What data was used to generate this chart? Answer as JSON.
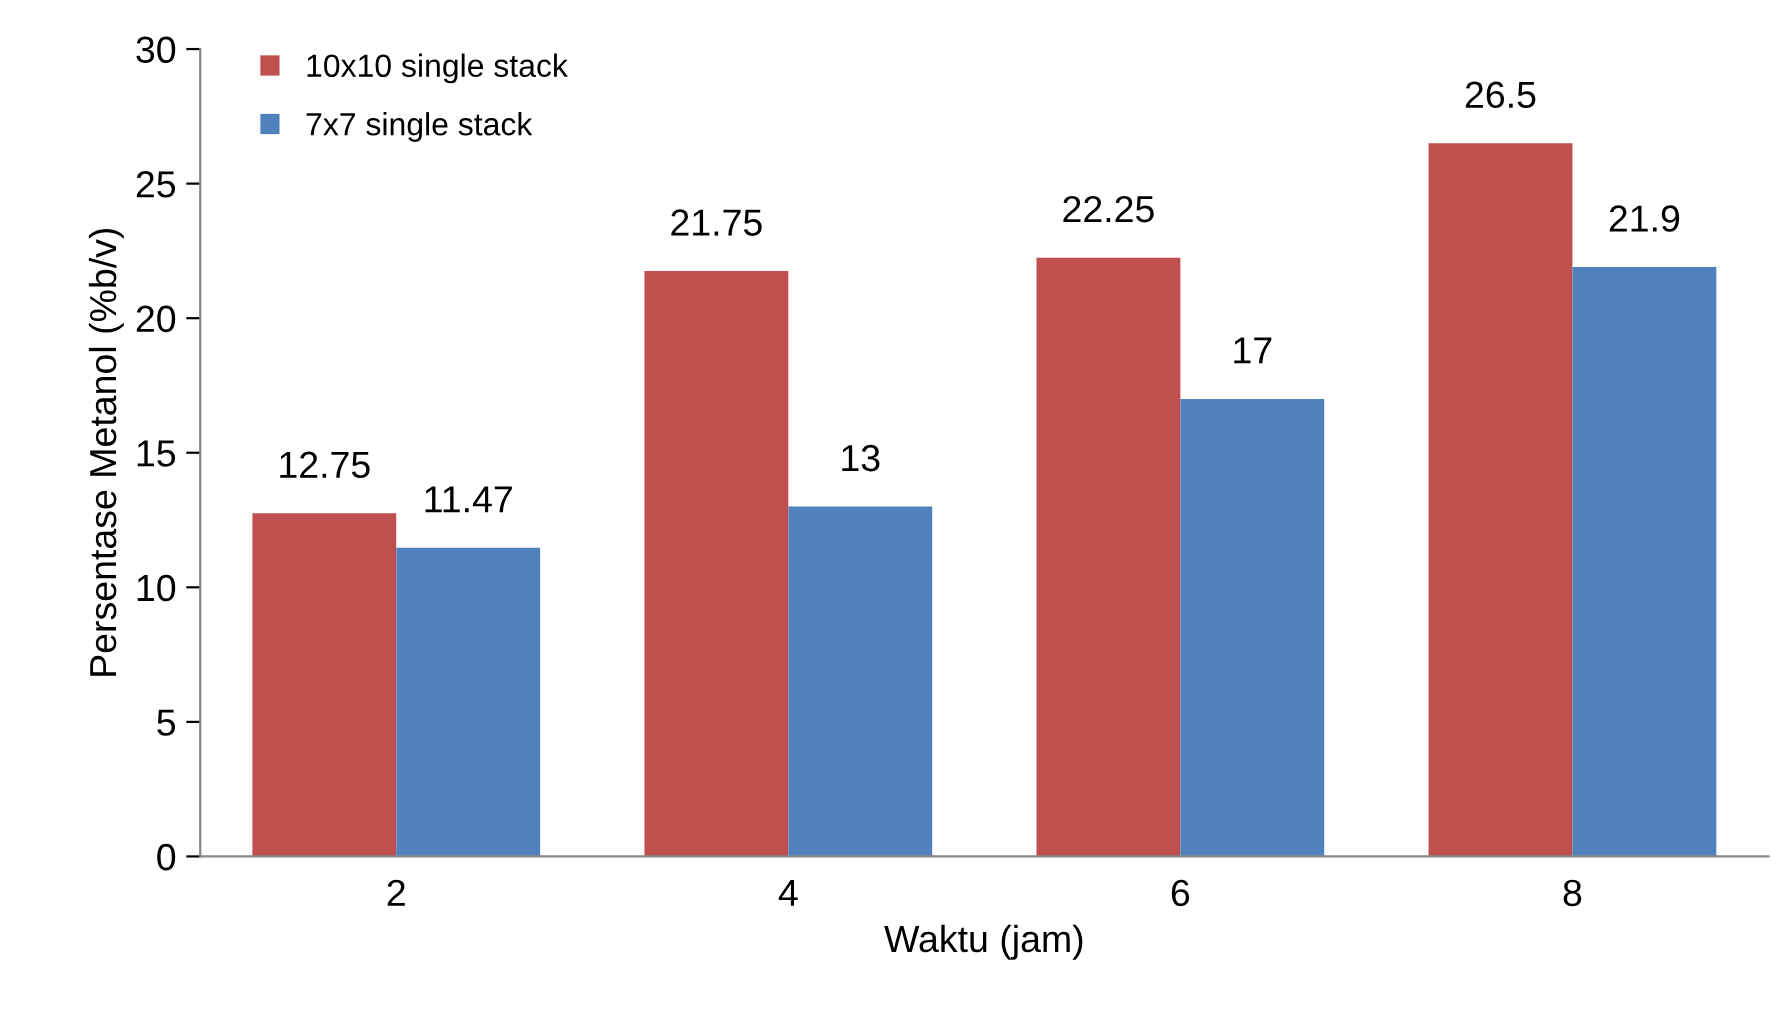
{
  "chart_data": {
    "type": "bar",
    "xlabel": "Waktu (jam)",
    "ylabel": "Persentase Metanol (%b/v)",
    "categories": [
      "2",
      "4",
      "6",
      "8"
    ],
    "series": [
      {
        "name": "10x10 single stack",
        "color": "#c0504d",
        "values": [
          12.75,
          21.75,
          22.25,
          26.5
        ]
      },
      {
        "name": "7x7 single stack",
        "color": "#4f81bd",
        "values": [
          11.47,
          13,
          17,
          21.9
        ]
      }
    ],
    "ylim": [
      0,
      30
    ],
    "yticks": [
      0,
      5,
      10,
      15,
      20,
      25,
      30
    ],
    "grid": false,
    "legend": "top left",
    "data_labels": true
  }
}
